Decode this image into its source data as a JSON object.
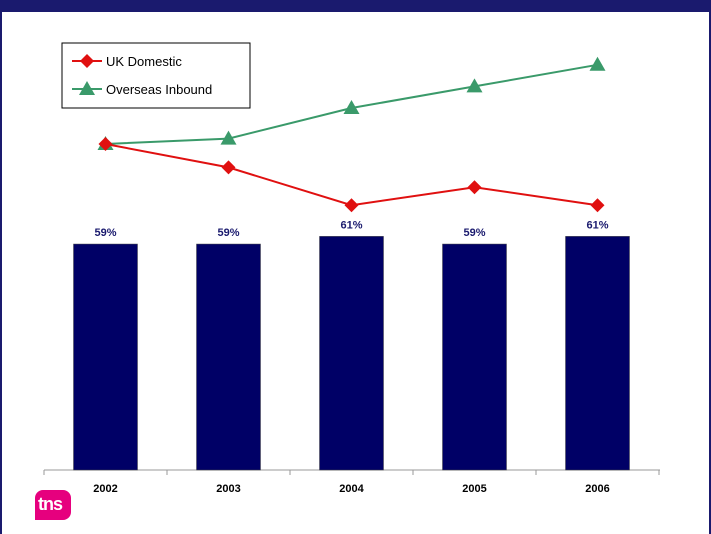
{
  "colors": {
    "frame": "#1a1a6e",
    "bar": "#000066",
    "uk_line": "#e01010",
    "overseas_line": "#3a9a6a",
    "logo_bg": "#e6007e"
  },
  "logo": {
    "text": "tns"
  },
  "chart_data": {
    "type": "bar",
    "categories": [
      "2002",
      "2003",
      "2004",
      "2005",
      "2006"
    ],
    "values": [
      59,
      59,
      61,
      59,
      61
    ],
    "value_labels": [
      "59%",
      "59%",
      "61%",
      "59%",
      "61%"
    ],
    "ylim": [
      0,
      70
    ],
    "grid": false,
    "legend_position": "top-left",
    "line_series": [
      {
        "name": "UK Domestic",
        "marker": "diamond",
        "values": [
          100,
          93.5,
          83,
          88,
          83
        ]
      },
      {
        "name": "Overseas Inbound",
        "marker": "triangle",
        "values": [
          100,
          101.5,
          110,
          116,
          122
        ]
      }
    ],
    "line_ylim": [
      55,
      130
    ]
  }
}
